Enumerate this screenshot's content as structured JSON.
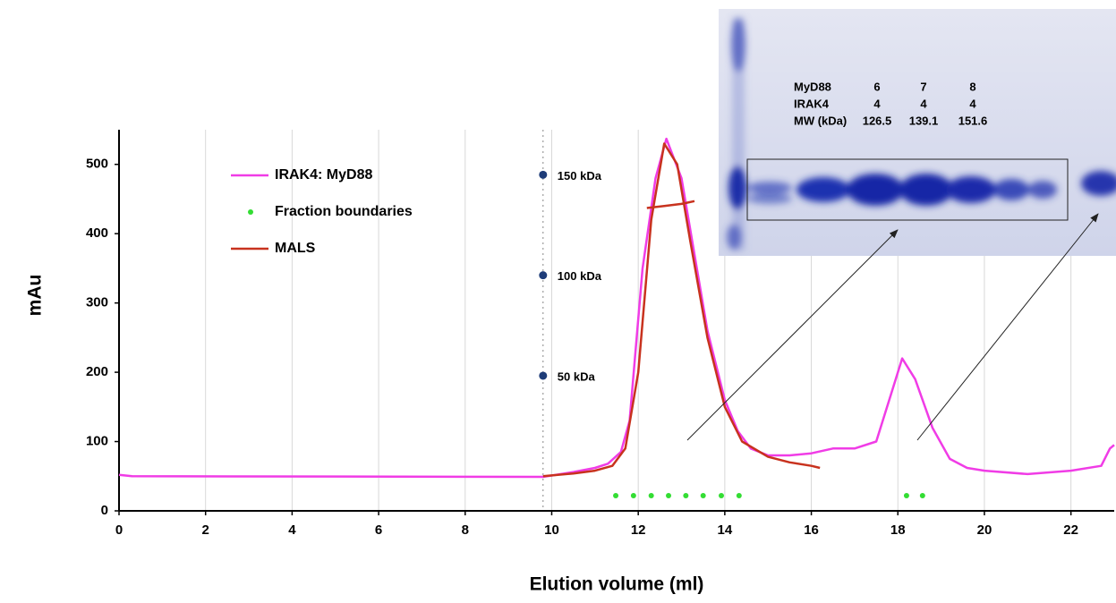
{
  "chart_data": {
    "type": "line",
    "xlabel": "Elution volume (ml)",
    "ylabel": "mAu",
    "xlim": [
      0,
      23
    ],
    "ylim": [
      0,
      550
    ],
    "xticks": [
      0,
      2,
      4,
      6,
      8,
      10,
      12,
      14,
      16,
      18,
      20,
      22
    ],
    "yticks": [
      0,
      100,
      200,
      300,
      400,
      500
    ],
    "grid": true,
    "legend": "upper left",
    "series": [
      {
        "name": "IRAK4: MyD88",
        "color": "#f03ce6",
        "style": "line",
        "x": [
          0,
          0.3,
          9.8,
          10,
          10.5,
          11,
          11.3,
          11.6,
          11.8,
          12.1,
          12.4,
          12.65,
          13,
          13.3,
          13.6,
          14,
          14.3,
          14.6,
          15,
          15.5,
          16,
          16.5,
          17,
          17.5,
          17.8,
          18.1,
          18.4,
          18.8,
          19.2,
          19.6,
          20,
          21,
          22,
          22.7,
          22.9,
          23
        ],
        "values": [
          52,
          50,
          49,
          51,
          56,
          62,
          68,
          85,
          130,
          350,
          480,
          537,
          480,
          370,
          260,
          160,
          115,
          90,
          80,
          80,
          83,
          90,
          90,
          100,
          160,
          220,
          190,
          120,
          75,
          62,
          58,
          53,
          58,
          65,
          90,
          95
        ]
      },
      {
        "name": "Fraction boundaries",
        "color": "#33dd33",
        "style": "markers",
        "x": [
          11.48,
          11.89,
          12.3,
          12.7,
          13.1,
          13.5,
          13.92,
          14.33,
          18.2,
          18.57
        ],
        "values": [
          22,
          22,
          22,
          22,
          22,
          22,
          22,
          22,
          22,
          22
        ]
      },
      {
        "name": "MALS",
        "color": "#c8321e",
        "style": "line",
        "x": [
          9.8,
          10.5,
          11,
          11.4,
          11.7,
          12,
          12.3,
          12.6,
          12.9,
          13.2,
          13.6,
          14,
          14.4,
          15,
          15.5,
          16,
          16.2,
          null,
          12.2,
          12.6,
          13,
          13.3
        ],
        "values": [
          50,
          54,
          58,
          65,
          90,
          200,
          420,
          530,
          500,
          390,
          250,
          150,
          100,
          78,
          70,
          65,
          62,
          null,
          437,
          440,
          443,
          447
        ]
      }
    ],
    "annotations": [
      {
        "text": "150 kDa",
        "x": 9.8,
        "y": 485
      },
      {
        "text": "100 kDa",
        "x": 9.8,
        "y": 340
      },
      {
        "text": "50 kDa",
        "x": 9.8,
        "y": 195
      }
    ],
    "marker_color": "#1e3c78"
  },
  "inset": {
    "rows": [
      [
        "MyD88",
        "6",
        "7",
        "8"
      ],
      [
        "IRAK4",
        "4",
        "4",
        "4"
      ],
      [
        "MW (kDa)",
        "126.5",
        "139.1",
        "151.6"
      ]
    ]
  }
}
